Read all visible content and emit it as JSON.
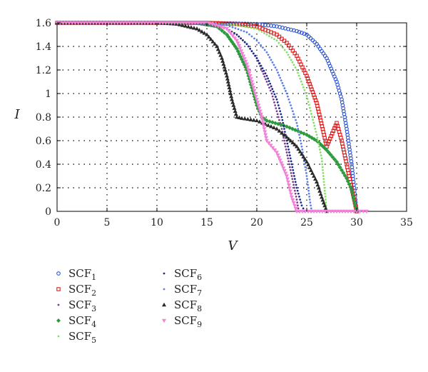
{
  "chart_data": {
    "type": "scatter",
    "xlabel": "V",
    "ylabel": "I",
    "xlim": [
      0,
      35
    ],
    "ylim": [
      0,
      1.6
    ],
    "x_ticks": [
      "0",
      "5",
      "10",
      "15",
      "20",
      "25",
      "30",
      "35"
    ],
    "y_ticks": [
      "0",
      "0.2",
      "0.4",
      "0.6",
      "0.8",
      "1",
      "1.2",
      "1.4",
      "1.6"
    ],
    "grid": true,
    "legend_position": "below",
    "series": [
      {
        "name": "SCF",
        "sub": "1",
        "color": "#2a52d4",
        "marker": "circle",
        "points": [
          [
            0,
            1.6
          ],
          [
            10,
            1.6
          ],
          [
            15,
            1.6
          ],
          [
            20,
            1.59
          ],
          [
            22,
            1.57
          ],
          [
            24,
            1.53
          ],
          [
            25,
            1.5
          ],
          [
            26,
            1.42
          ],
          [
            27,
            1.3
          ],
          [
            28,
            1.1
          ],
          [
            28.5,
            0.95
          ],
          [
            29,
            0.7
          ],
          [
            29.5,
            0.4
          ],
          [
            29.8,
            0.15
          ],
          [
            30,
            0
          ]
        ]
      },
      {
        "name": "SCF",
        "sub": "2",
        "color": "#dd1f1f",
        "marker": "square",
        "points": [
          [
            0,
            1.6
          ],
          [
            10,
            1.6
          ],
          [
            15,
            1.6
          ],
          [
            18,
            1.59
          ],
          [
            20,
            1.57
          ],
          [
            22,
            1.5
          ],
          [
            23,
            1.43
          ],
          [
            24,
            1.32
          ],
          [
            25,
            1.15
          ],
          [
            26,
            0.92
          ],
          [
            27,
            0.55
          ],
          [
            28,
            0.75
          ],
          [
            28.5,
            0.6
          ],
          [
            29,
            0.4
          ],
          [
            29.5,
            0.2
          ],
          [
            30,
            0
          ]
        ]
      },
      {
        "name": "SCF",
        "sub": "3",
        "color": "#7a3c8c",
        "marker": "dot",
        "points": [
          [
            0,
            1.6
          ],
          [
            10,
            1.6
          ],
          [
            13,
            1.6
          ],
          [
            15,
            1.58
          ],
          [
            17,
            1.55
          ],
          [
            18,
            1.5
          ],
          [
            19,
            1.42
          ],
          [
            20,
            1.3
          ],
          [
            21,
            1.1
          ],
          [
            21.5,
            1.0
          ],
          [
            22,
            0.85
          ],
          [
            22.5,
            0.7
          ],
          [
            23,
            0.5
          ],
          [
            23.5,
            0.3
          ],
          [
            24,
            0.1
          ],
          [
            24.2,
            0
          ]
        ]
      },
      {
        "name": "SCF",
        "sub": "4",
        "color": "#2e9a3e",
        "marker": "diamond",
        "points": [
          [
            0,
            1.6
          ],
          [
            10,
            1.6
          ],
          [
            14,
            1.6
          ],
          [
            16,
            1.57
          ],
          [
            17,
            1.5
          ],
          [
            18,
            1.38
          ],
          [
            19,
            1.2
          ],
          [
            19.5,
            1.05
          ],
          [
            20,
            0.9
          ],
          [
            20.5,
            0.8
          ],
          [
            21,
            0.77
          ],
          [
            23,
            0.72
          ],
          [
            25,
            0.65
          ],
          [
            26,
            0.6
          ],
          [
            27,
            0.52
          ],
          [
            28,
            0.42
          ],
          [
            29,
            0.28
          ],
          [
            29.5,
            0.18
          ],
          [
            30,
            0
          ]
        ]
      },
      {
        "name": "SCF",
        "sub": "5",
        "color": "#86df64",
        "marker": "dot",
        "points": [
          [
            0,
            1.6
          ],
          [
            10,
            1.6
          ],
          [
            15,
            1.6
          ],
          [
            18,
            1.58
          ],
          [
            20,
            1.55
          ],
          [
            22,
            1.45
          ],
          [
            23,
            1.35
          ],
          [
            24,
            1.2
          ],
          [
            25,
            0.98
          ],
          [
            26,
            0.65
          ],
          [
            26.5,
            0.45
          ],
          [
            27,
            0.0
          ]
        ]
      },
      {
        "name": "SCF",
        "sub": "6",
        "color": "#1a2a8e",
        "marker": "dot",
        "points": [
          [
            0,
            1.6
          ],
          [
            10,
            1.6
          ],
          [
            15,
            1.59
          ],
          [
            17,
            1.55
          ],
          [
            18,
            1.5
          ],
          [
            19,
            1.42
          ],
          [
            20,
            1.3
          ],
          [
            21,
            1.15
          ],
          [
            22,
            0.95
          ],
          [
            22.5,
            0.8
          ],
          [
            23,
            0.6
          ],
          [
            23.5,
            0.4
          ],
          [
            24,
            0.2
          ],
          [
            24.5,
            0.05
          ],
          [
            24.8,
            0
          ]
        ]
      },
      {
        "name": "SCF",
        "sub": "7",
        "color": "#5b7ee8",
        "marker": "dot",
        "points": [
          [
            0,
            1.6
          ],
          [
            10,
            1.6
          ],
          [
            15,
            1.6
          ],
          [
            17,
            1.58
          ],
          [
            19,
            1.52
          ],
          [
            20,
            1.45
          ],
          [
            21,
            1.35
          ],
          [
            22,
            1.2
          ],
          [
            23,
            1.0
          ],
          [
            24,
            0.75
          ],
          [
            24.5,
            0.55
          ],
          [
            25,
            0.3
          ],
          [
            25.3,
            0.1
          ],
          [
            25.5,
            0
          ]
        ]
      },
      {
        "name": "SCF",
        "sub": "8",
        "color": "#2a2a2a",
        "marker": "triangle",
        "points": [
          [
            0,
            1.6
          ],
          [
            10,
            1.6
          ],
          [
            12,
            1.59
          ],
          [
            14,
            1.55
          ],
          [
            15,
            1.5
          ],
          [
            16,
            1.4
          ],
          [
            16.5,
            1.3
          ],
          [
            17,
            1.15
          ],
          [
            17.5,
            0.95
          ],
          [
            18,
            0.8
          ],
          [
            18.5,
            0.79
          ],
          [
            20,
            0.77
          ],
          [
            22,
            0.7
          ],
          [
            23,
            0.63
          ],
          [
            24,
            0.55
          ],
          [
            25,
            0.42
          ],
          [
            26,
            0.25
          ],
          [
            26.5,
            0.12
          ],
          [
            27,
            0
          ]
        ]
      },
      {
        "name": "SCF",
        "sub": "9",
        "color": "#f282d8",
        "marker": "triangle-down",
        "points": [
          [
            0,
            1.6
          ],
          [
            10,
            1.6
          ],
          [
            15,
            1.6
          ],
          [
            17,
            1.55
          ],
          [
            18,
            1.45
          ],
          [
            19,
            1.25
          ],
          [
            20,
            0.95
          ],
          [
            20.5,
            0.8
          ],
          [
            21,
            0.6
          ],
          [
            22,
            0.5
          ],
          [
            23,
            0.3
          ],
          [
            23.5,
            0.12
          ],
          [
            24,
            0
          ],
          [
            26,
            0
          ],
          [
            28,
            0
          ],
          [
            30,
            0
          ],
          [
            31,
            0
          ]
        ]
      }
    ]
  }
}
